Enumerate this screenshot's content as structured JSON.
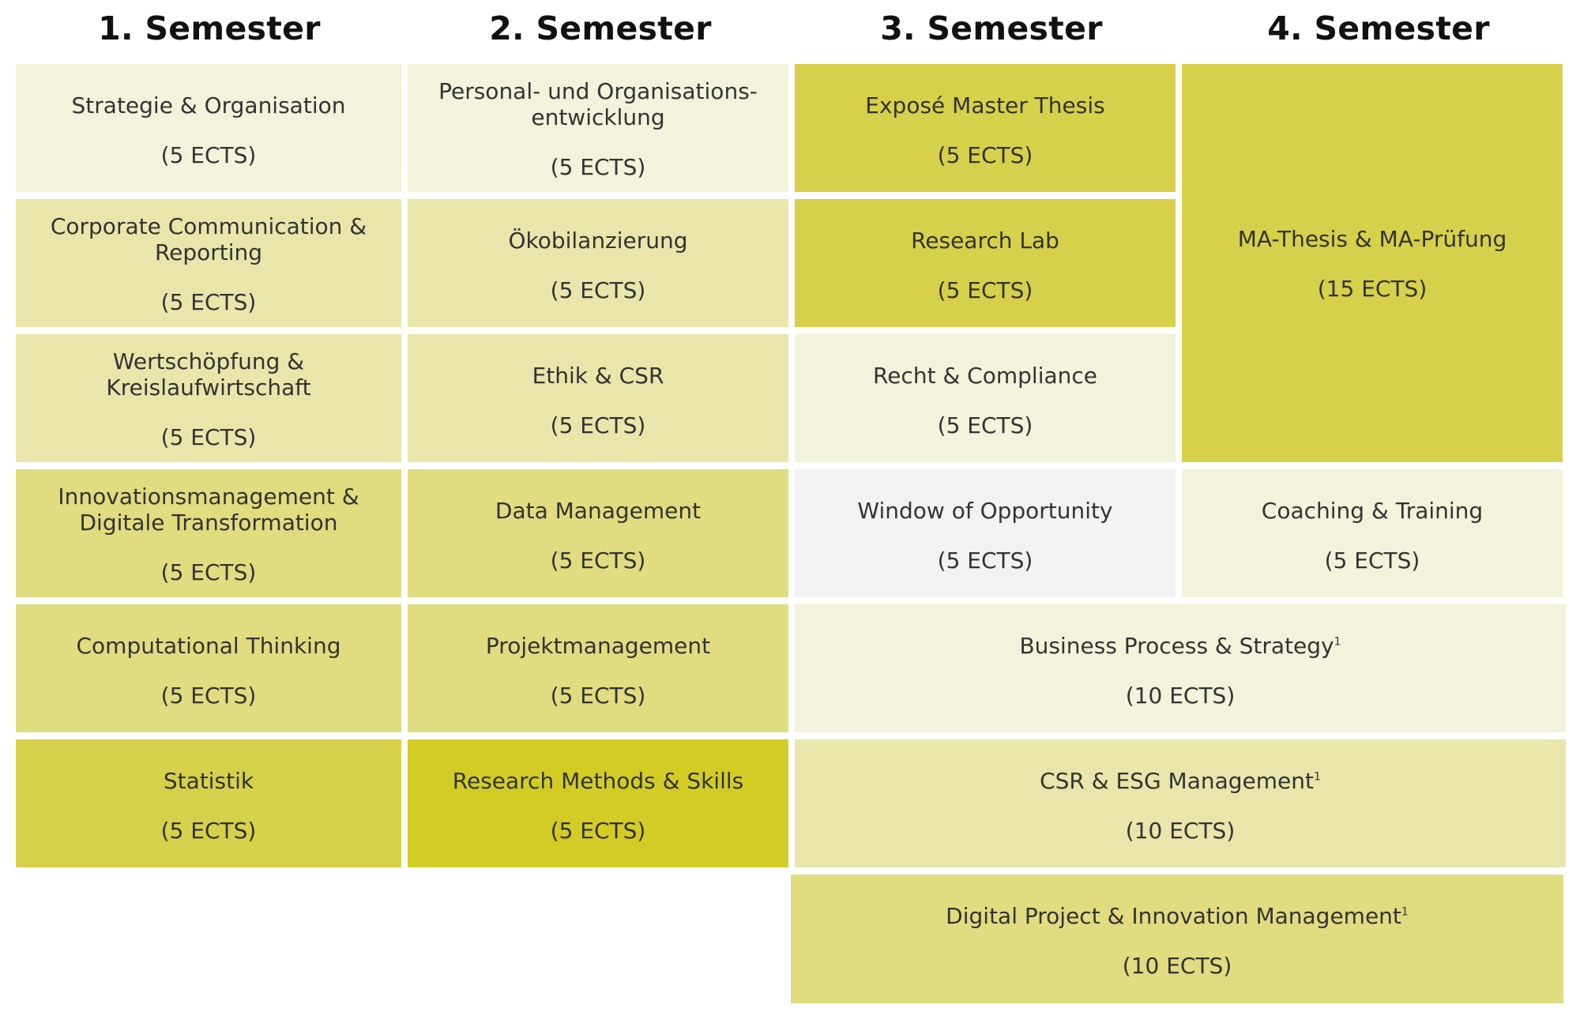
{
  "headers": [
    "1. Semester",
    "2. Semester",
    "3. Semester",
    "4. Semester"
  ],
  "colors": {
    "very_light": "#f3f2da",
    "light": "#e8e6aa",
    "medium": "#e0dc7f",
    "dark": "#d7d04a",
    "darkest": "#d2cc25",
    "grey": "#f2f2f3"
  },
  "semester1": [
    {
      "title": "Strategie & Organisation",
      "ects": "(5 ECTS)"
    },
    {
      "title": "Corporate Communication &\nReporting",
      "ects": "(5 ECTS)"
    },
    {
      "title": "Wertschöpfung &\nKreislaufwirtschaft",
      "ects": "(5 ECTS)"
    },
    {
      "title": "Innovationsmanagement &\nDigitale Transformation",
      "ects": "(5 ECTS)"
    },
    {
      "title": "Computational Thinking",
      "ects": "(5 ECTS)"
    },
    {
      "title": "Statistik",
      "ects": "(5 ECTS)"
    }
  ],
  "semester2": [
    {
      "title": "Personal- und Organisations-\nentwicklung",
      "ects": "(5 ECTS)"
    },
    {
      "title": "Ökobilanzierung",
      "ects": "(5 ECTS)"
    },
    {
      "title": "Ethik & CSR",
      "ects": "(5 ECTS)"
    },
    {
      "title": "Data Management",
      "ects": "(5 ECTS)"
    },
    {
      "title": "Projektmanagement",
      "ects": "(5 ECTS)"
    },
    {
      "title": "Research Methods & Skills",
      "ects": "(5 ECTS)"
    }
  ],
  "semester3": [
    {
      "title": "Exposé Master Thesis",
      "ects": "(5 ECTS)"
    },
    {
      "title": "Research Lab",
      "ects": "(5 ECTS)"
    },
    {
      "title": "Recht & Compliance",
      "ects": "(5 ECTS)"
    },
    {
      "title": "Window of Opportunity",
      "ects": "(5 ECTS)"
    }
  ],
  "semester4": [
    {
      "title": "MA-Thesis & MA-Prüfung",
      "ects": "(15 ECTS)"
    },
    {
      "title": "Coaching & Training",
      "ects": "(5 ECTS)"
    }
  ],
  "electives": [
    {
      "title": "Business Process & Strategy",
      "footnote": "1",
      "ects": "(10 ECTS)"
    },
    {
      "title": "CSR & ESG Management",
      "footnote": "1",
      "ects": "(10 ECTS)"
    },
    {
      "title": "Digital Project & Innovation Management",
      "footnote": "1",
      "ects": "(10 ECTS)"
    }
  ]
}
